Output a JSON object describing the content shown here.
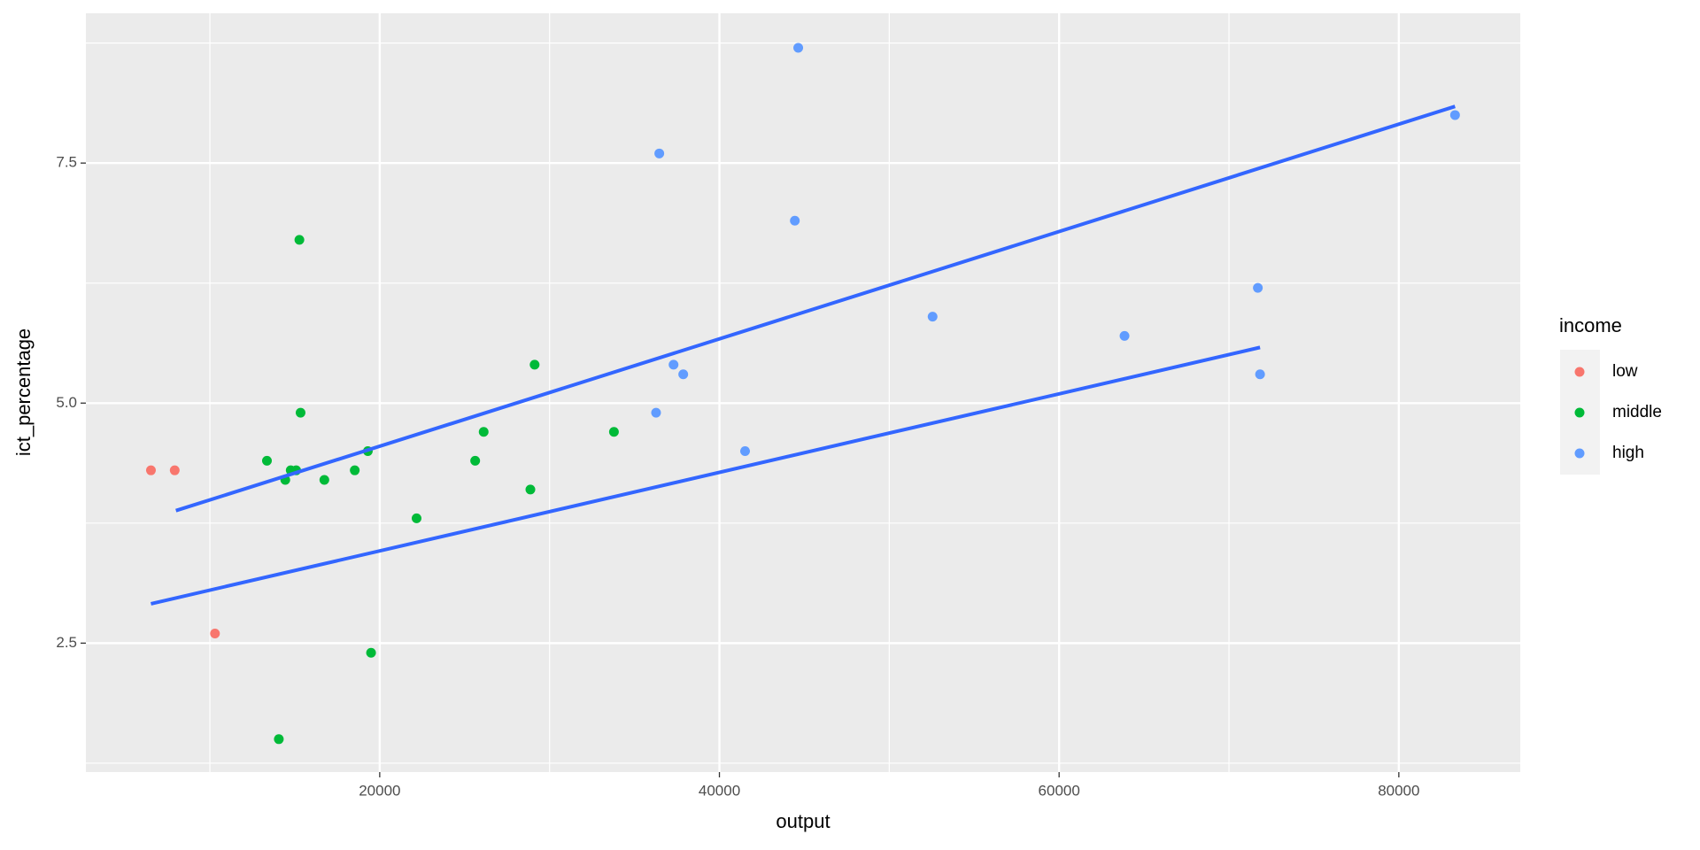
{
  "chart_data": {
    "type": "scatter",
    "x_label": "output",
    "y_label": "ict_percentage",
    "legend_title": "income",
    "xlim": [
      2700,
      87150
    ],
    "ylim": [
      1.157,
      9.06
    ],
    "xticks": [
      20000,
      40000,
      60000,
      80000
    ],
    "yticks": [
      2.5,
      5.0,
      7.5
    ],
    "minor_xticks": [
      10000,
      30000,
      50000,
      70000
    ],
    "minor_yticks": [
      1.25,
      3.75,
      6.25,
      8.75
    ],
    "grid": true,
    "series": [
      {
        "name": "low",
        "color": "#F8766D",
        "x": [
          6530,
          7930,
          10300
        ],
        "values": [
          4.3,
          4.3,
          2.6
        ]
      },
      {
        "name": "middle",
        "color": "#00BA38",
        "x": [
          15270,
          13360,
          14440,
          14760,
          15080,
          15340,
          16740,
          18530,
          19300,
          22170,
          19490,
          14060,
          25620,
          26120,
          28870,
          29120,
          33790
        ],
        "values": [
          6.7,
          4.4,
          4.2,
          4.3,
          4.3,
          4.9,
          4.2,
          4.3,
          4.5,
          3.8,
          2.4,
          1.5,
          4.4,
          4.7,
          4.1,
          5.4,
          4.7
        ]
      },
      {
        "name": "high",
        "color": "#619CFF",
        "x": [
          44640,
          36460,
          44440,
          83310,
          71700,
          52550,
          63850,
          37300,
          37870,
          71830,
          36270,
          41510
        ],
        "values": [
          8.7,
          7.6,
          6.9,
          8.0,
          6.2,
          5.9,
          5.7,
          5.4,
          5.3,
          5.3,
          4.9,
          4.5
        ]
      }
    ],
    "fit_lines": [
      {
        "color": "#3366FF",
        "x": [
          8000,
          83310
        ],
        "values": [
          3.88,
          8.09
        ]
      },
      {
        "color": "#3366FF",
        "x": [
          6530,
          71830
        ],
        "values": [
          2.91,
          5.58
        ]
      }
    ]
  }
}
